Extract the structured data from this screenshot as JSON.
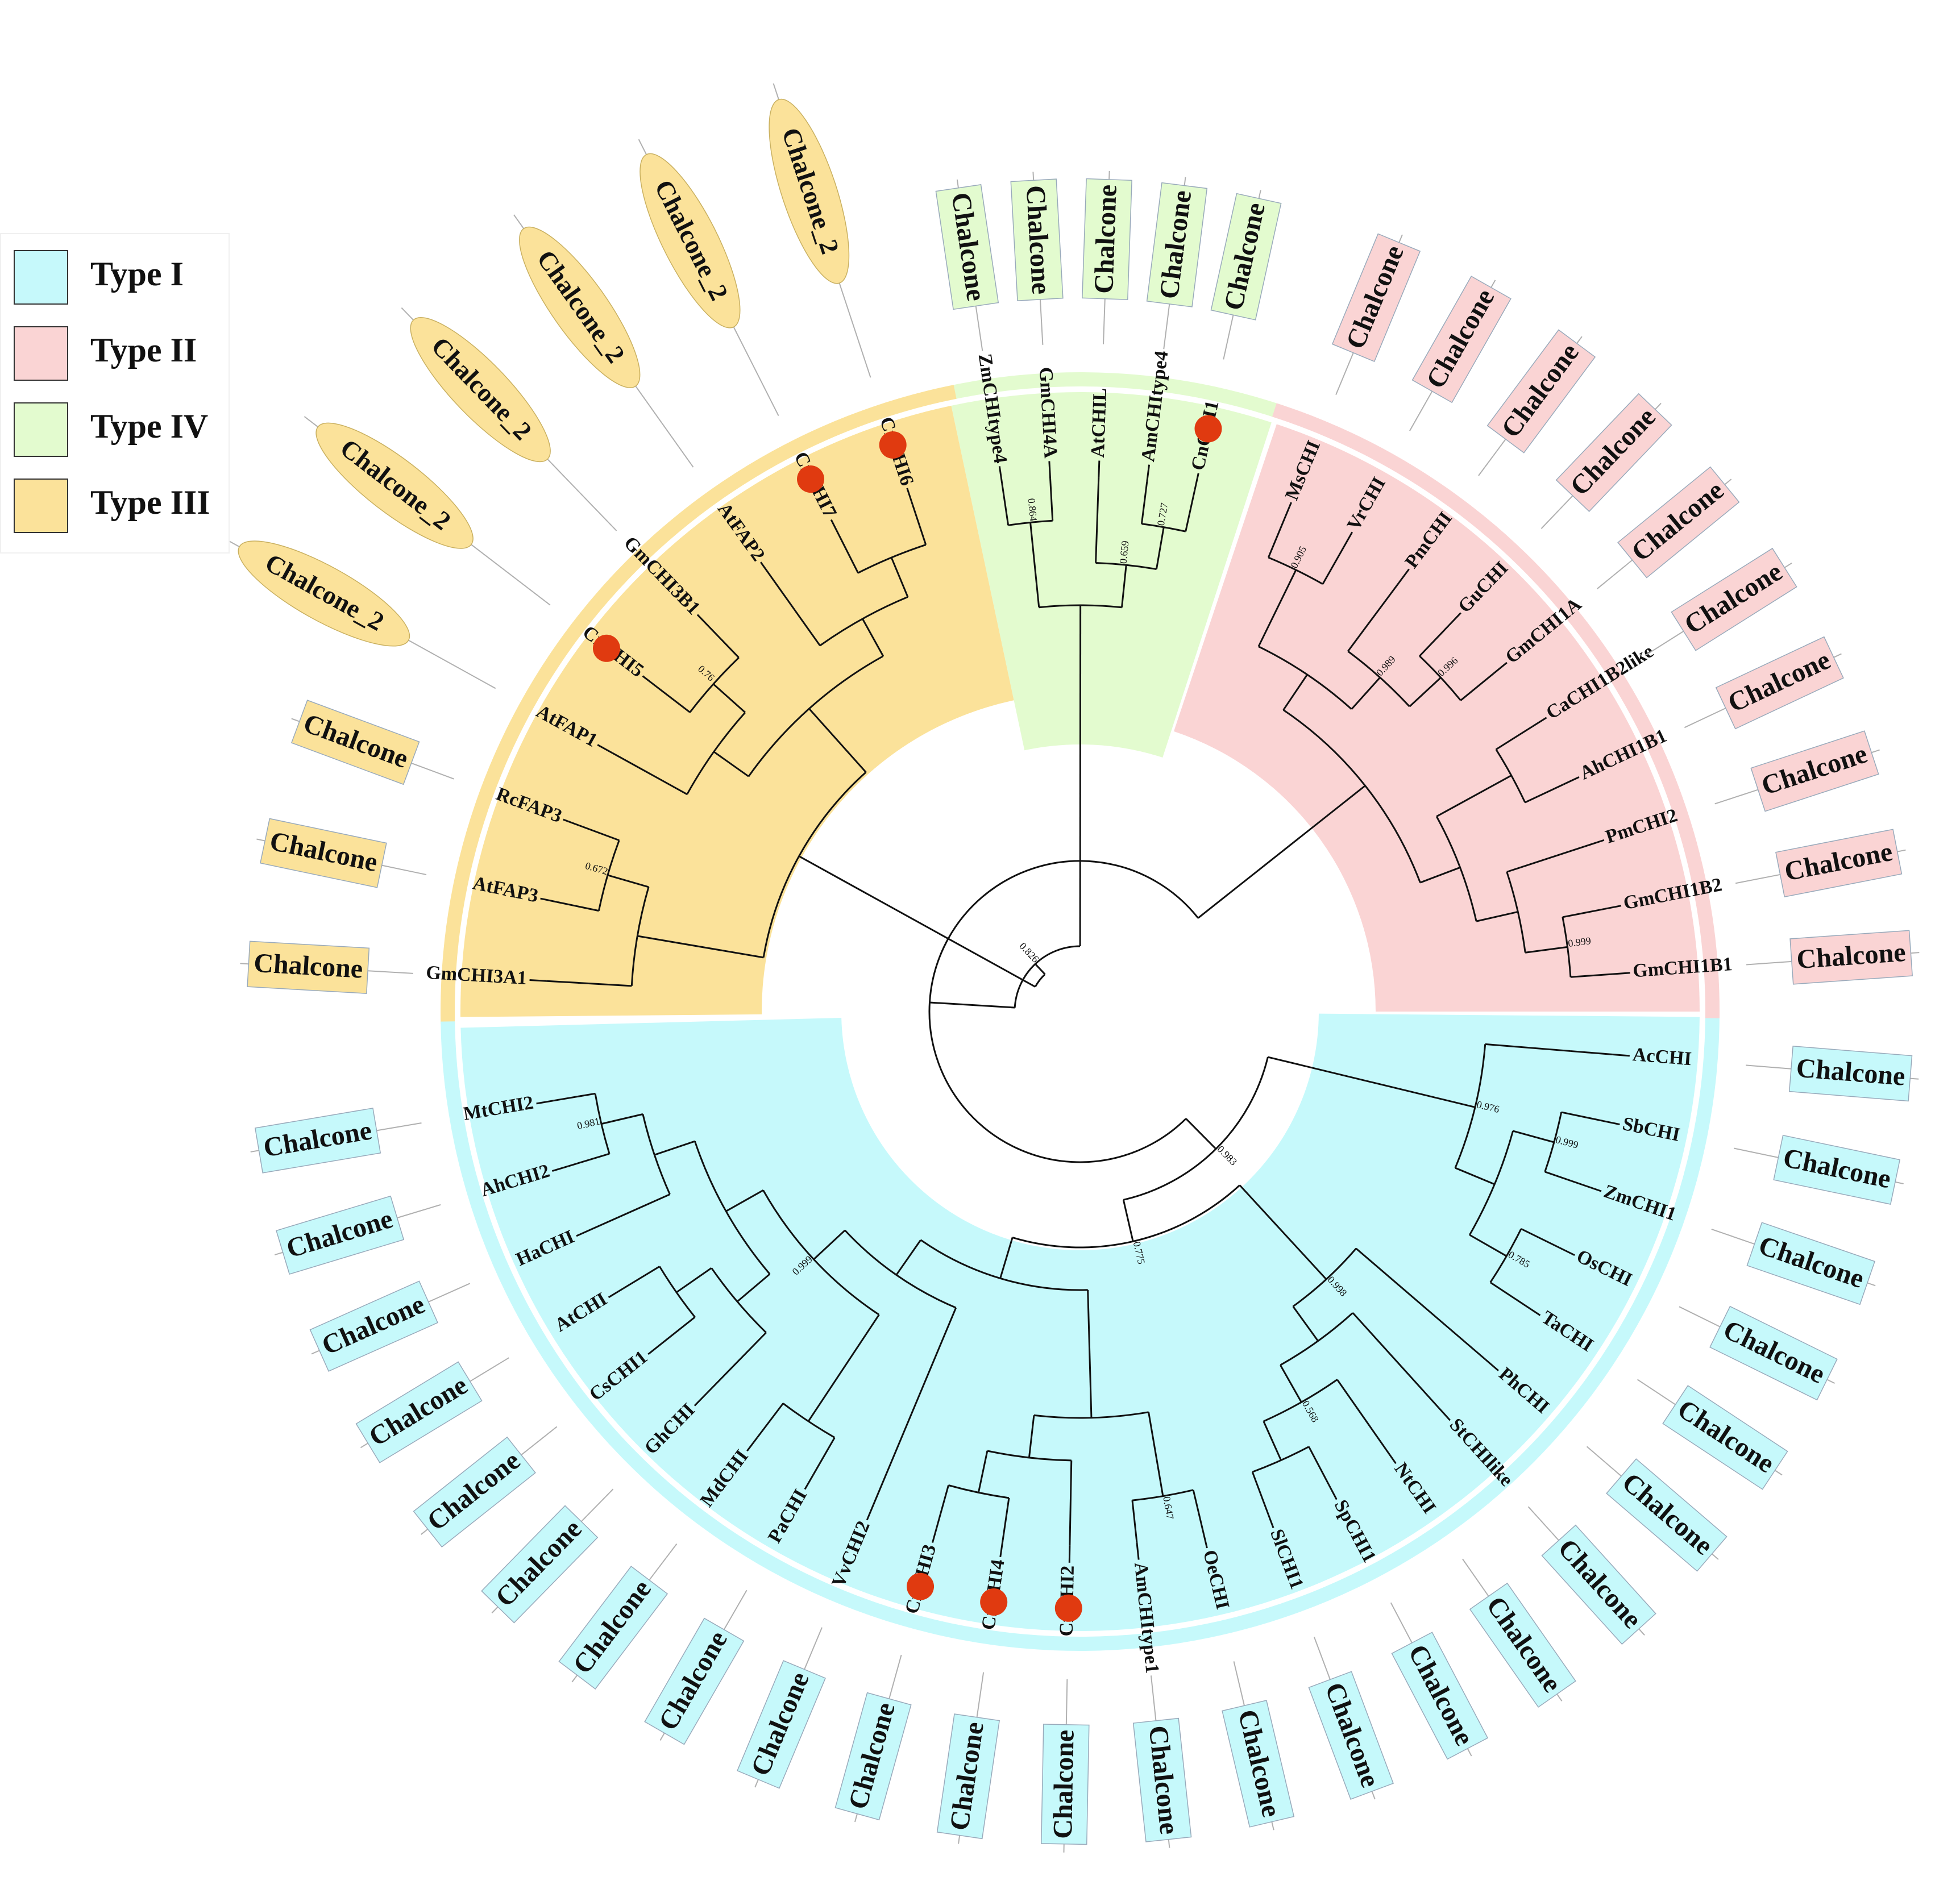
{
  "legend": [
    {
      "label": "Type I",
      "color": "#c6f9fb"
    },
    {
      "label": "Type II",
      "color": "#fad4d4"
    },
    {
      "label": "Type IV",
      "color": "#e3fbcf"
    },
    {
      "label": "Type III",
      "color": "#fbe29a"
    }
  ],
  "colors": {
    "type1": "#c6f9fb",
    "type2": "#fad4d4",
    "type3": "#fbe29a",
    "type4": "#e3fbcf",
    "marker": "#e03a10",
    "branch": "#111111",
    "connector": "#b0b0b0"
  },
  "leaves": [
    {
      "name": "CnCHI1",
      "type": "type4",
      "domain": "Chalcone",
      "marked": true
    },
    {
      "name": "AmCHItype4",
      "type": "type4",
      "domain": "Chalcone",
      "marked": false
    },
    {
      "name": "AtCHIL",
      "type": "type4",
      "domain": "Chalcone",
      "marked": false
    },
    {
      "name": "GmCHI4A",
      "type": "type4",
      "domain": "Chalcone",
      "marked": false
    },
    {
      "name": "ZmCHItype4",
      "type": "type4",
      "domain": "Chalcone",
      "marked": false
    },
    {
      "name": "CnCHI6",
      "type": "type3",
      "domain": "Chalcone_2",
      "marked": true
    },
    {
      "name": "CnCHI7",
      "type": "type3",
      "domain": "Chalcone_2",
      "marked": true
    },
    {
      "name": "AtFAP2",
      "type": "type3",
      "domain": "Chalcone_2",
      "marked": false
    },
    {
      "name": "GmCHI3B1",
      "type": "type3",
      "domain": "Chalcone_2",
      "marked": false
    },
    {
      "name": "CnCHI5",
      "type": "type3",
      "domain": "Chalcone_2",
      "marked": true
    },
    {
      "name": "AtFAP1",
      "type": "type3",
      "domain": "Chalcone_2",
      "marked": false
    },
    {
      "name": "RcFAP3",
      "type": "type3",
      "domain": "Chalcone",
      "marked": false
    },
    {
      "name": "AtFAP3",
      "type": "type3",
      "domain": "Chalcone",
      "marked": false
    },
    {
      "name": "GmCHI3A1",
      "type": "type3",
      "domain": "Chalcone",
      "marked": false
    },
    {
      "name": "MtCHI2",
      "type": "type1",
      "domain": "Chalcone",
      "marked": false
    },
    {
      "name": "AhCHI2",
      "type": "type1",
      "domain": "Chalcone",
      "marked": false
    },
    {
      "name": "HaCHI",
      "type": "type1",
      "domain": "Chalcone",
      "marked": false
    },
    {
      "name": "AtCHI",
      "type": "type1",
      "domain": "Chalcone",
      "marked": false
    },
    {
      "name": "CsCHI1",
      "type": "type1",
      "domain": "Chalcone",
      "marked": false
    },
    {
      "name": "GhCHI",
      "type": "type1",
      "domain": "Chalcone",
      "marked": false
    },
    {
      "name": "MdCHI",
      "type": "type1",
      "domain": "Chalcone",
      "marked": false
    },
    {
      "name": "PaCHI",
      "type": "type1",
      "domain": "Chalcone",
      "marked": false
    },
    {
      "name": "VvCHI2",
      "type": "type1",
      "domain": "Chalcone",
      "marked": false
    },
    {
      "name": "CnCHI3",
      "type": "type1",
      "domain": "Chalcone",
      "marked": true
    },
    {
      "name": "CnCHI4",
      "type": "type1",
      "domain": "Chalcone",
      "marked": true
    },
    {
      "name": "CnCHI2",
      "type": "type1",
      "domain": "Chalcone",
      "marked": true
    },
    {
      "name": "AmCHItype1",
      "type": "type1",
      "domain": "Chalcone",
      "marked": false
    },
    {
      "name": "OeCHI",
      "type": "type1",
      "domain": "Chalcone",
      "marked": false
    },
    {
      "name": "SlCHI1",
      "type": "type1",
      "domain": "Chalcone",
      "marked": false
    },
    {
      "name": "SpCHI1",
      "type": "type1",
      "domain": "Chalcone",
      "marked": false
    },
    {
      "name": "NtCHI",
      "type": "type1",
      "domain": "Chalcone",
      "marked": false
    },
    {
      "name": "StCHIlike",
      "type": "type1",
      "domain": "Chalcone",
      "marked": false
    },
    {
      "name": "PhCHI",
      "type": "type1",
      "domain": "Chalcone",
      "marked": false
    },
    {
      "name": "TaCHI",
      "type": "type1",
      "domain": "Chalcone",
      "marked": false
    },
    {
      "name": "OsCHI",
      "type": "type1",
      "domain": "Chalcone",
      "marked": false
    },
    {
      "name": "ZmCHI1",
      "type": "type1",
      "domain": "Chalcone",
      "marked": false
    },
    {
      "name": "SbCHI",
      "type": "type1",
      "domain": "Chalcone",
      "marked": false
    },
    {
      "name": "AcCHI",
      "type": "type1",
      "domain": "Chalcone",
      "marked": false
    },
    {
      "name": "GmCHI1B1",
      "type": "type2",
      "domain": "Chalcone",
      "marked": false
    },
    {
      "name": "GmCHI1B2",
      "type": "type2",
      "domain": "Chalcone",
      "marked": false
    },
    {
      "name": "PmCHI2",
      "type": "type2",
      "domain": "Chalcone",
      "marked": false
    },
    {
      "name": "AhCHI1B1",
      "type": "type2",
      "domain": "Chalcone",
      "marked": false
    },
    {
      "name": "CaCHI1B2like",
      "type": "type2",
      "domain": "Chalcone",
      "marked": false
    },
    {
      "name": "GmCHI1A",
      "type": "type2",
      "domain": "Chalcone",
      "marked": false
    },
    {
      "name": "GuCHI",
      "type": "type2",
      "domain": "Chalcone",
      "marked": false
    },
    {
      "name": "PmCHI",
      "type": "type2",
      "domain": "Chalcone",
      "marked": false
    },
    {
      "name": "VrCHI",
      "type": "type2",
      "domain": "Chalcone",
      "marked": false
    },
    {
      "name": "MsCHI",
      "type": "type2",
      "domain": "Chalcone",
      "marked": false
    }
  ],
  "support_values": [
    "0.826",
    "0.983",
    "0.976",
    "0.999",
    "0.785",
    "0.775",
    "0.998",
    "0.568",
    "0.647",
    "0.999",
    "0.981",
    "0.672",
    "0.76",
    "0.864",
    "0.659",
    "0.727",
    "0.905",
    "0.989",
    "0.996",
    "0.999"
  ],
  "tree": {
    "children": [
      {
        "support": "0.826",
        "children": [
          {
            "children": [
              {
                "children": [
                  {
                    "children": [
                      {
                        "leaf": 0
                      },
                      {
                        "leaf": 1
                      }
                    ],
                    "support": "0.727"
                  },
                  {
                    "leaf": 2
                  }
                ],
                "support": "0.659"
              },
              {
                "children": [
                  {
                    "leaf": 3
                  },
                  {
                    "leaf": 4
                  }
                ],
                "support": "0.864"
              }
            ]
          },
          {
            "children": [
              {
                "children": [
                  {
                    "children": [
                      {
                        "children": [
                          {
                            "leaf": 47
                          },
                          {
                            "leaf": 46
                          }
                        ],
                        "support": "0.905"
                      },
                      {
                        "children": [
                          {
                            "leaf": 45
                          },
                          {
                            "children": [
                              {
                                "leaf": 44
                              },
                              {
                                "leaf": 43
                              }
                            ],
                            "support": "0.996"
                          }
                        ],
                        "support": "0.989"
                      }
                    ]
                  },
                  {
                    "children": [
                      {
                        "children": [
                          {
                            "leaf": 42
                          },
                          {
                            "leaf": 41
                          }
                        ]
                      },
                      {
                        "children": [
                          {
                            "leaf": 40
                          },
                          {
                            "children": [
                              {
                                "leaf": 39
                              },
                              {
                                "leaf": 38
                              }
                            ],
                            "support": "0.999"
                          }
                        ]
                      }
                    ]
                  }
                ]
              },
              {
                "support": "0.983",
                "children": [
                  {
                    "support": "0.976",
                    "children": [
                      {
                        "children": [
                          {
                            "leaf": 37
                          }
                        ]
                      },
                      {
                        "children": [
                          {
                            "children": [
                              {
                                "leaf": 36
                              },
                              {
                                "leaf": 35
                              }
                            ],
                            "support": "0.999"
                          },
                          {
                            "children": [
                              {
                                "leaf": 34
                              },
                              {
                                "leaf": 33
                              }
                            ],
                            "support": "0.785"
                          }
                        ]
                      }
                    ]
                  },
                  {
                    "support": "0.775",
                    "children": [
                      {
                        "support": "0.998",
                        "children": [
                          {
                            "children": [
                              {
                                "children": [
                                  {
                                    "children": [
                                      {
                                        "leaf": 28
                                      },
                                      {
                                        "leaf": 29
                                      }
                                    ]
                                  },
                                  {
                                    "leaf": 30
                                  }
                                ],
                                "support": "0.568"
                              },
                              {
                                "leaf": 31
                              }
                            ]
                          },
                          {
                            "leaf": 32
                          }
                        ]
                      },
                      {
                        "children": [
                          {
                            "children": [
                              {
                                "children": [
                                  {
                                    "children": [
                                      {
                                        "leaf": 23
                                      },
                                      {
                                        "leaf": 24
                                      }
                                    ]
                                  },
                                  {
                                    "leaf": 25
                                  }
                                ]
                              },
                              {
                                "children": [
                                  {
                                    "leaf": 26
                                  },
                                  {
                                    "leaf": 27
                                  }
                                ],
                                "support": "0.647"
                              }
                            ]
                          },
                          {
                            "children": [
                              {
                                "children": [
                                  {
                                    "children": [
                                      {
                                        "children": [
                                          {
                                            "children": [
                                              {
                                                "leaf": 14
                                              },
                                              {
                                                "leaf": 15
                                              }
                                            ],
                                            "support": "0.981"
                                          },
                                          {
                                            "leaf": 16
                                          }
                                        ]
                                      },
                                      {
                                        "children": [
                                          {
                                            "children": [
                                              {
                                                "leaf": 17
                                              },
                                              {
                                                "leaf": 18
                                              }
                                            ]
                                          },
                                          {
                                            "leaf": 19
                                          }
                                        ]
                                      }
                                    ]
                                  },
                                  {
                                    "children": [
                                      {
                                        "leaf": 20
                                      },
                                      {
                                        "leaf": 21
                                      }
                                    ]
                                  }
                                ],
                                "support": "0.999"
                              },
                              {
                                "leaf": 22
                              }
                            ]
                          }
                        ]
                      }
                    ]
                  }
                ]
              }
            ]
          }
        ]
      },
      {
        "children": [
          {
            "children": [
              {
                "children": [
                  {
                    "children": [
                      {
                        "leaf": 5
                      },
                      {
                        "leaf": 6
                      }
                    ]
                  },
                  {
                    "leaf": 7
                  }
                ]
              },
              {
                "children": [
                  {
                    "children": [
                      {
                        "leaf": 8
                      },
                      {
                        "leaf": 9
                      }
                    ],
                    "support": "0.76"
                  },
                  {
                    "leaf": 10
                  }
                ]
              }
            ]
          },
          {
            "children": [
              {
                "children": [
                  {
                    "leaf": 11
                  },
                  {
                    "leaf": 12
                  }
                ],
                "support": "0.672"
              },
              {
                "leaf": 13
              }
            ]
          }
        ]
      }
    ]
  }
}
